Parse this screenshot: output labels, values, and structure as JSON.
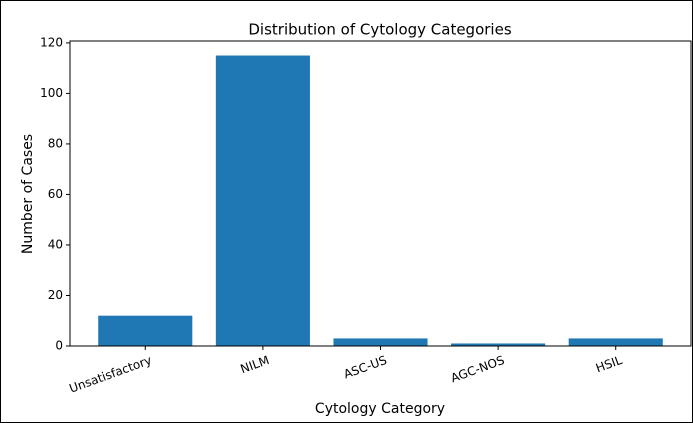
{
  "chart_data": {
    "type": "bar",
    "title": "Distribution of Cytology Categories",
    "x_label": "Cytology Category",
    "y_label": "Number of Cases",
    "categories": [
      "Unsatisfactory",
      "NILM",
      "ASC-US",
      "AGC-NOS",
      "HSIL"
    ],
    "values": [
      12,
      115,
      3,
      1,
      3
    ],
    "color": "#1f77b4",
    "ylim": [
      0,
      120.75
    ],
    "yticks": [
      0,
      20,
      40,
      60,
      80,
      100,
      120
    ],
    "grid": false
  }
}
